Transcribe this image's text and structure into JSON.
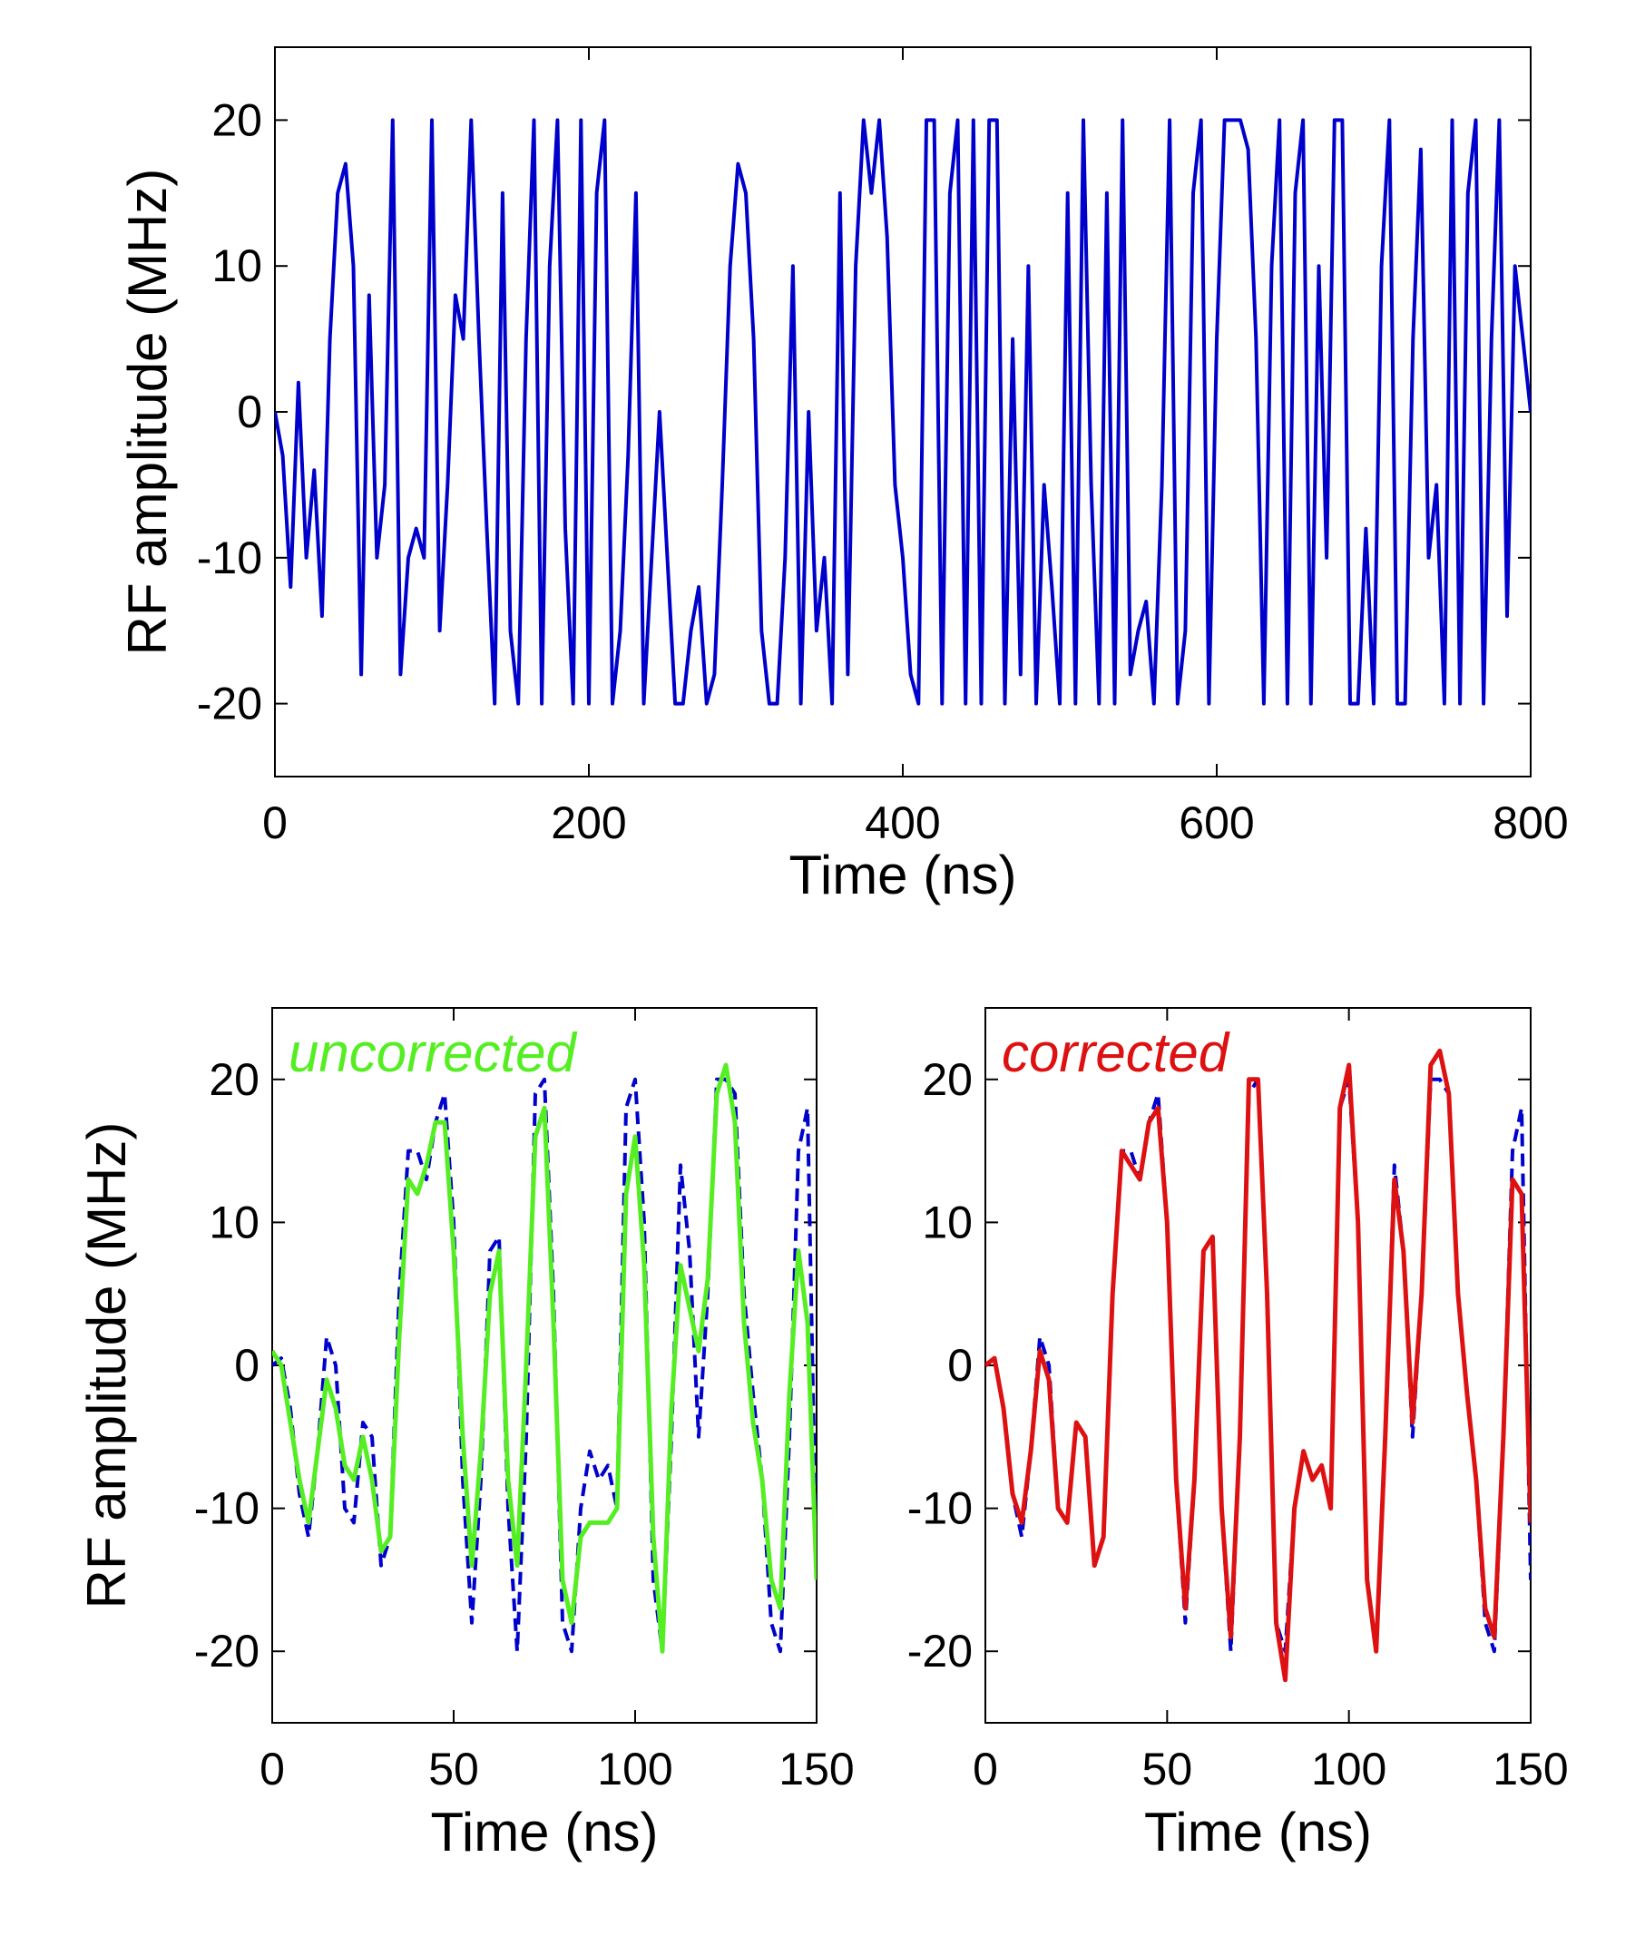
{
  "chart_data": [
    {
      "type": "line",
      "xlabel": "Time (ns)",
      "ylabel": "RF amplitude (MHz)",
      "xlim": [
        0,
        800
      ],
      "ylim": [
        -25,
        25
      ],
      "xticks": [
        0,
        200,
        400,
        600,
        800
      ],
      "yticks": [
        -20,
        -10,
        0,
        10,
        20
      ],
      "x": [
        0,
        5,
        10,
        15,
        20,
        25,
        30,
        35,
        40,
        45,
        50,
        55,
        60,
        65,
        70,
        75,
        80,
        85,
        90,
        95,
        100,
        105,
        110,
        115,
        120,
        125,
        130,
        135,
        140,
        145,
        150,
        155,
        160,
        165,
        170,
        175,
        180,
        185,
        190,
        195,
        200,
        205,
        210,
        215,
        220,
        225,
        230,
        235,
        240,
        245,
        250,
        255,
        260,
        265,
        270,
        275,
        280,
        285,
        290,
        295,
        300,
        305,
        310,
        315,
        320,
        325,
        330,
        335,
        340,
        345,
        350,
        355,
        360,
        365,
        370,
        375,
        380,
        385,
        390,
        395,
        400,
        405,
        410,
        415,
        420,
        425,
        430,
        435,
        440,
        445,
        450,
        455,
        460,
        465,
        470,
        475,
        480,
        485,
        490,
        495,
        500,
        505,
        510,
        515,
        520,
        525,
        530,
        535,
        540,
        545,
        550,
        555,
        560,
        565,
        570,
        575,
        580,
        585,
        590,
        595,
        600,
        605,
        610,
        615,
        620,
        625,
        630,
        635,
        640,
        645,
        650,
        655,
        660,
        665,
        670,
        675,
        680,
        685,
        690,
        695,
        700,
        705,
        710,
        715,
        720,
        725,
        730,
        735,
        740,
        745,
        750,
        755,
        760,
        765,
        770,
        775,
        780,
        785,
        790,
        795,
        800
      ],
      "series": [
        {
          "color": "#0000cc",
          "style": "solid",
          "values": [
            0,
            -3,
            -12,
            2,
            -10,
            -4,
            -14,
            5,
            15,
            17,
            10,
            -18,
            8,
            -10,
            -5,
            20,
            -18,
            -10,
            -8,
            -10,
            20,
            -15,
            -5,
            8,
            5,
            20,
            5,
            -8,
            -20,
            15,
            -15,
            -20,
            5,
            20,
            -20,
            10,
            20,
            -8,
            -20,
            20,
            -20,
            15,
            20,
            -20,
            -15,
            -3,
            15,
            -20,
            -10,
            0,
            -10,
            -20,
            -20,
            -15,
            -12,
            -20,
            -18,
            -5,
            10,
            17,
            15,
            5,
            -15,
            -20,
            -20,
            -10,
            10,
            -20,
            0,
            -15,
            -10,
            -20,
            15,
            -18,
            10,
            20,
            15,
            20,
            12,
            -5,
            -10,
            -18,
            -20,
            20,
            20,
            -20,
            15,
            20,
            -20,
            20,
            -20,
            20,
            20,
            -20,
            5,
            -18,
            10,
            -20,
            -5,
            -12,
            -20,
            15,
            -20,
            20,
            -5,
            -20,
            15,
            -20,
            20,
            -18,
            -15,
            -13,
            -20,
            -5,
            20,
            -20,
            -15,
            15,
            20,
            -20,
            5,
            20,
            20,
            20,
            18,
            5,
            -20,
            10,
            20,
            -20,
            15,
            20,
            -20,
            10,
            -10,
            20,
            20,
            -20,
            -20,
            -8,
            -20,
            10,
            20,
            -20,
            -20,
            5,
            18,
            -10,
            -5,
            -20,
            20,
            -20,
            15,
            20,
            -20,
            5,
            20,
            -14,
            10,
            5,
            0
          ]
        }
      ]
    },
    {
      "type": "line",
      "xlabel": "Time (ns)",
      "ylabel": "RF amplitude (MHz)",
      "annotation": "uncorrected",
      "annotation_color": "#55ee22",
      "xlim": [
        0,
        150
      ],
      "ylim": [
        -25,
        25
      ],
      "xticks": [
        0,
        50,
        100,
        150
      ],
      "yticks": [
        -20,
        -10,
        0,
        10,
        20
      ],
      "x": [
        0,
        2.5,
        5,
        7.5,
        10,
        12.5,
        15,
        17.5,
        20,
        22.5,
        25,
        27.5,
        30,
        32.5,
        35,
        37.5,
        40,
        42.5,
        45,
        47.5,
        50,
        52.5,
        55,
        57.5,
        60,
        62.5,
        65,
        67.5,
        70,
        72.5,
        75,
        77.5,
        80,
        82.5,
        85,
        87.5,
        90,
        92.5,
        95,
        97.5,
        100,
        102.5,
        105,
        107.5,
        110,
        112.5,
        115,
        117.5,
        120,
        122.5,
        125,
        127.5,
        130,
        132.5,
        135,
        137.5,
        140,
        142.5,
        145,
        147.5,
        150
      ],
      "series": [
        {
          "color": "#0000cc",
          "style": "dashed",
          "values": [
            0,
            0.5,
            -3,
            -9,
            -12,
            -6,
            2,
            0,
            -10,
            -11,
            -4,
            -5,
            -14,
            -12,
            5,
            15,
            15,
            13,
            17,
            19,
            10,
            -8,
            -18,
            -8,
            8,
            9,
            -10,
            -20,
            -5,
            19,
            20,
            5,
            -18,
            -20,
            -10,
            -6,
            -8,
            -7,
            -10,
            18,
            20,
            10,
            -15,
            -20,
            -5,
            14,
            8,
            -5,
            5,
            20,
            20,
            19,
            5,
            -2,
            -8,
            -18,
            -20,
            -5,
            15,
            18,
            -15
          ]
        },
        {
          "color": "#55ee22",
          "style": "solid",
          "values": [
            1,
            0,
            -4,
            -8,
            -11,
            -6,
            -1,
            -3,
            -7,
            -8,
            -5,
            -8,
            -13,
            -12,
            2,
            13,
            12,
            14,
            17,
            17,
            8,
            -5,
            -14,
            -6,
            5,
            8,
            -8,
            -14,
            0,
            16,
            18,
            3,
            -15,
            -18,
            -12,
            -11,
            -11,
            -11,
            -10,
            12,
            16,
            7,
            -12,
            -20,
            -3,
            7,
            4,
            1,
            6,
            19,
            21,
            17,
            3,
            -4,
            -8,
            -15,
            -17,
            -2,
            8,
            3,
            -15
          ]
        }
      ]
    },
    {
      "type": "line",
      "xlabel": "Time (ns)",
      "annotation": "corrected",
      "annotation_color": "#dd1111",
      "xlim": [
        0,
        150
      ],
      "ylim": [
        -25,
        25
      ],
      "xticks": [
        0,
        50,
        100,
        150
      ],
      "yticks": [
        -20,
        -10,
        0,
        10,
        20
      ],
      "x": [
        0,
        2.5,
        5,
        7.5,
        10,
        12.5,
        15,
        17.5,
        20,
        22.5,
        25,
        27.5,
        30,
        32.5,
        35,
        37.5,
        40,
        42.5,
        45,
        47.5,
        50,
        52.5,
        55,
        57.5,
        60,
        62.5,
        65,
        67.5,
        70,
        72.5,
        75,
        77.5,
        80,
        82.5,
        85,
        87.5,
        90,
        92.5,
        95,
        97.5,
        100,
        102.5,
        105,
        107.5,
        110,
        112.5,
        115,
        117.5,
        120,
        122.5,
        125,
        127.5,
        130,
        132.5,
        135,
        137.5,
        140,
        142.5,
        145,
        147.5,
        150
      ],
      "series": [
        {
          "color": "#0000cc",
          "style": "dashed",
          "values": [
            0,
            0.5,
            -3,
            -9,
            -12,
            -6,
            2,
            0,
            -10,
            -11,
            -4,
            -5,
            -14,
            -12,
            5,
            15,
            15,
            13,
            17,
            19,
            10,
            -8,
            -18,
            -8,
            8,
            9,
            -10,
            -20,
            -5,
            19,
            20,
            5,
            -18,
            -20,
            -10,
            -6,
            -8,
            -7,
            -10,
            18,
            20,
            10,
            -15,
            -20,
            -5,
            14,
            8,
            -5,
            5,
            20,
            20,
            19,
            5,
            -2,
            -8,
            -18,
            -20,
            -5,
            15,
            18,
            -15
          ]
        },
        {
          "color": "#dd1111",
          "style": "solid",
          "values": [
            0,
            0.5,
            -3,
            -9,
            -11,
            -6,
            1,
            -1,
            -10,
            -11,
            -4,
            -5,
            -14,
            -12,
            5,
            15,
            14,
            13,
            17,
            18,
            10,
            -8,
            -17,
            -8,
            8,
            9,
            -10,
            -19,
            -5,
            20,
            20,
            5,
            -18,
            -22,
            -10,
            -6,
            -8,
            -7,
            -10,
            18,
            21,
            10,
            -15,
            -20,
            -5,
            13,
            8,
            -4,
            5,
            21,
            22,
            19,
            5,
            -2,
            -8,
            -17,
            -19,
            -5,
            13,
            12,
            -11
          ]
        }
      ]
    }
  ]
}
